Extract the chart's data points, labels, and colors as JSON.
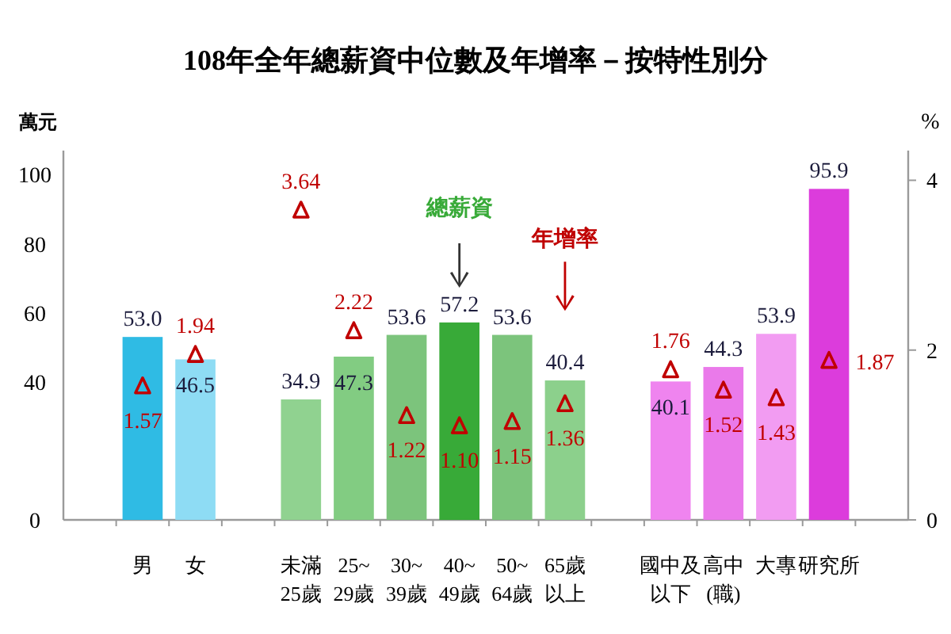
{
  "chart_data": {
    "type": "bar",
    "title": "108年全年總薪資中位數及年增率－按特性別分",
    "ylabel": "萬元",
    "y2label": "%",
    "categories": [
      "男",
      "女",
      null,
      "未滿25歲",
      "25~29歲",
      "30~39歲",
      "40~49歲",
      "50~64歲",
      "65歲以上",
      null,
      "國中及以下",
      "高中(職)",
      "大專",
      "研究所"
    ],
    "series": [
      {
        "name": "總薪資",
        "type": "bar",
        "colors": [
          "#2fbbe4",
          "#8edcf4",
          null,
          "#90d290",
          "#82cc82",
          "#7cc47c",
          "#38aa38",
          "#7cc47c",
          "#8cd08c",
          null,
          "#ef84ef",
          "#ea7aea",
          "#f29cf2",
          "#dc3cdc"
        ],
        "values": [
          53.0,
          46.5,
          null,
          34.9,
          47.3,
          53.6,
          57.2,
          53.6,
          40.4,
          null,
          40.1,
          44.3,
          53.9,
          95.9
        ],
        "value_labels": [
          "53.0",
          "46.5",
          null,
          "34.9",
          "47.3",
          "53.6",
          "57.2",
          "53.6",
          "40.4",
          null,
          "40.1",
          "44.3",
          "53.9",
          "95.9"
        ]
      },
      {
        "name": "年增率",
        "type": "scatter",
        "axis": "y2",
        "color": "#c00000",
        "marker": "triangle",
        "values": [
          1.57,
          1.94,
          null,
          3.64,
          2.22,
          1.22,
          1.1,
          1.15,
          1.36,
          null,
          1.76,
          1.52,
          1.43,
          1.87
        ],
        "value_labels": [
          "1.57",
          "1.94",
          null,
          "3.64",
          "2.22",
          "1.22",
          "1.10",
          "1.15",
          "1.36",
          null,
          "1.76",
          "1.52",
          "1.43",
          "1.87"
        ]
      }
    ],
    "ylim": [
      0,
      107
    ],
    "yticks": [
      0,
      40,
      60,
      80,
      100
    ],
    "y2lim": [
      0,
      4.35
    ],
    "y2ticks": [
      0,
      2,
      4
    ],
    "legend": false,
    "grid": false
  }
}
